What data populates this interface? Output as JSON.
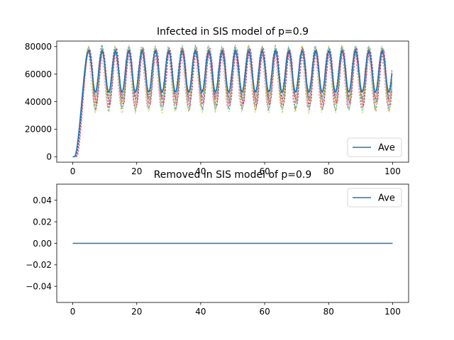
{
  "chart_data": [
    {
      "type": "line",
      "title": "Infected in SIS model of p=0.9",
      "xlabel": "",
      "ylabel": "",
      "xlim": [
        -5,
        105
      ],
      "ylim": [
        -4000,
        84000
      ],
      "xticks": [
        0,
        20,
        40,
        60,
        80,
        100
      ],
      "yticks": [
        0,
        20000,
        40000,
        60000,
        80000
      ],
      "grid": false,
      "legend": {
        "entries": [
          "Ave"
        ],
        "placement": "lower right"
      },
      "series": [
        {
          "name": "Ave",
          "color": "#1f77b4",
          "style": "solid",
          "model": {
            "x_start": 0,
            "x_end": 100,
            "rise_start": 0.5,
            "rise_end": 5,
            "peak": 77000,
            "trough": 47000,
            "period": 4.17
          }
        }
      ],
      "runs": {
        "count": 10,
        "style": "dashed",
        "colors": [
          "#d62728",
          "#2ca02c",
          "#9467bd",
          "#8c564b",
          "#e377c2",
          "#7f7f7f",
          "#bcbd22",
          "#17becf",
          "#ff7f0e",
          "#c2185b"
        ],
        "peak_range": [
          73000,
          80000
        ],
        "trough_range": [
          30000,
          46000
        ]
      }
    },
    {
      "type": "line",
      "title": "Removed in SIS model of p=0.9",
      "xlabel": "",
      "ylabel": "",
      "xlim": [
        -5,
        105
      ],
      "ylim": [
        -0.055,
        0.055
      ],
      "xticks": [
        0,
        20,
        40,
        60,
        80,
        100
      ],
      "yticks": [
        -0.04,
        -0.02,
        0.0,
        0.02,
        0.04
      ],
      "ytick_labels": [
        "−0.04",
        "−0.02",
        "0.00",
        "0.02",
        "0.04"
      ],
      "grid": false,
      "legend": {
        "entries": [
          "Ave"
        ],
        "placement": "upper right"
      },
      "series": [
        {
          "name": "Ave",
          "color": "#1f77b4",
          "style": "solid",
          "x": [
            0,
            100
          ],
          "y": [
            0,
            0
          ]
        }
      ]
    }
  ]
}
